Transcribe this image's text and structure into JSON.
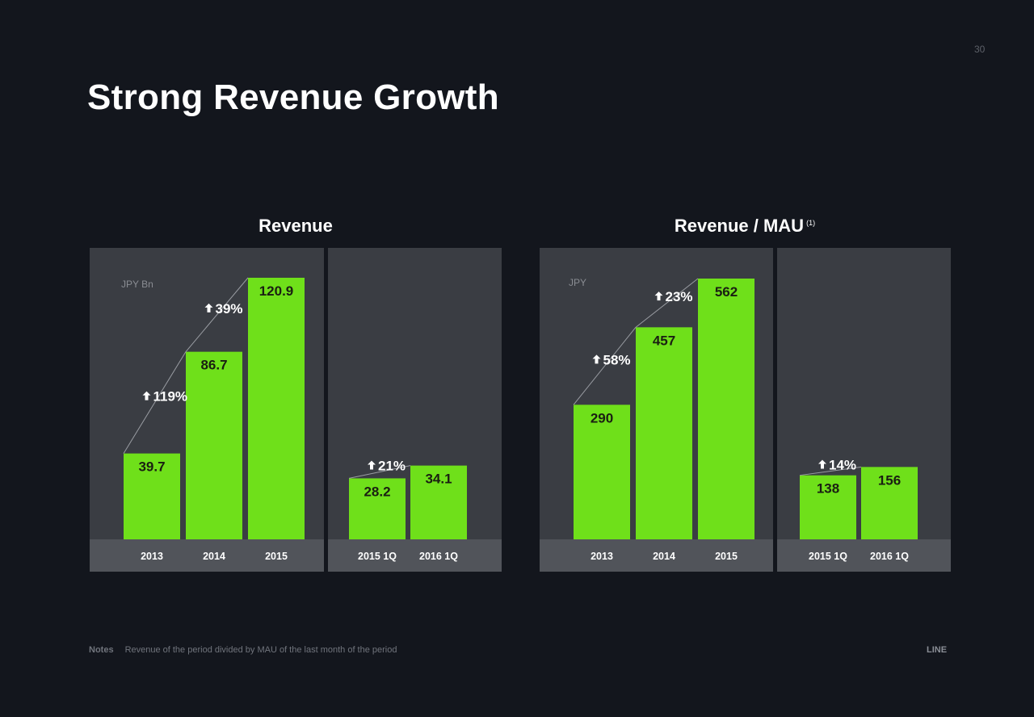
{
  "slide": {
    "title": "Strong Revenue Growth",
    "page_number": "30",
    "notes_label": "Notes",
    "notes_text": "Revenue of the period divided by MAU of the last month of the period",
    "brand": "LINE",
    "footnote_marker": "(1)"
  },
  "colors": {
    "background": "#13161d",
    "panel": "#3a3d43",
    "axis_band": "#51545a",
    "bar": "#6fe01a",
    "bar_label": "#1a1f12",
    "growth_text": "#ffffff",
    "unit_text": "#8a8d93"
  },
  "chart_data": [
    {
      "type": "bar",
      "title": "Revenue",
      "unit": "JPY Bn",
      "panels": [
        {
          "categories": [
            "2013",
            "2014",
            "2015"
          ],
          "values": [
            39.7,
            86.7,
            120.9
          ],
          "labels": [
            "39.7",
            "86.7",
            "120.9"
          ],
          "growth": [
            {
              "from": 0,
              "to": 1,
              "label": "119%"
            },
            {
              "from": 1,
              "to": 2,
              "label": "39%"
            }
          ]
        },
        {
          "categories": [
            "2015 1Q",
            "2016 1Q"
          ],
          "values": [
            28.2,
            34.1
          ],
          "labels": [
            "28.2",
            "34.1"
          ],
          "growth": [
            {
              "from": 0,
              "to": 1,
              "label": "21%"
            }
          ]
        }
      ]
    },
    {
      "type": "bar",
      "title": "Revenue / MAU",
      "unit": "JPY",
      "panels": [
        {
          "categories": [
            "2013",
            "2014",
            "2015"
          ],
          "values": [
            290,
            457,
            562
          ],
          "labels": [
            "290",
            "457",
            "562"
          ],
          "growth": [
            {
              "from": 0,
              "to": 1,
              "label": "58%"
            },
            {
              "from": 1,
              "to": 2,
              "label": "23%"
            }
          ]
        },
        {
          "categories": [
            "2015 1Q",
            "2016 1Q"
          ],
          "values": [
            138,
            156
          ],
          "labels": [
            "138",
            "156"
          ],
          "growth": [
            {
              "from": 0,
              "to": 1,
              "label": "14%"
            }
          ]
        }
      ]
    }
  ]
}
